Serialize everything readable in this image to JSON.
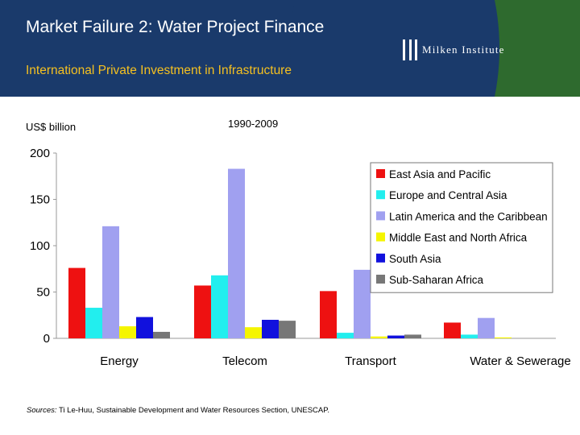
{
  "header": {
    "title": "Market Failure 2: Water Project Finance",
    "subtitle": "International Private Investment in Infrastructure",
    "logo_text": "Milken Institute"
  },
  "units_label": "US$ billion",
  "period_label": "1990-2009",
  "source": {
    "prefix": "Sources:",
    "text": "Ti Le-Huu, Sustainable Development and Water Resources Section, UNESCAP."
  },
  "colors": {
    "header_blue": "#1a3a6b",
    "header_green": "#2e6a2e",
    "subtitle_gold": "#f5c020"
  },
  "chart_data": {
    "type": "bar",
    "title": "",
    "xlabel": "",
    "ylabel": "US$ billion",
    "ylim": [
      0,
      200
    ],
    "yticks": [
      0,
      50,
      100,
      150,
      200
    ],
    "categories": [
      "Energy",
      "Telecom",
      "Transport",
      "Water & Sewerage"
    ],
    "legend_position": "right",
    "series": [
      {
        "name": "East Asia and Pacific",
        "color": "#ee1111",
        "values": [
          76,
          57,
          51,
          17
        ]
      },
      {
        "name": "Europe and Central Asia",
        "color": "#22eeee",
        "values": [
          33,
          68,
          6,
          4
        ]
      },
      {
        "name": "Latin America and the Caribbean",
        "color": "#a0a0f0",
        "values": [
          121,
          183,
          74,
          22
        ]
      },
      {
        "name": "Middle East and North Africa",
        "color": "#f5f500",
        "values": [
          13,
          12,
          2,
          1
        ]
      },
      {
        "name": "South Asia",
        "color": "#1111dd",
        "values": [
          23,
          20,
          3,
          0
        ]
      },
      {
        "name": "Sub-Saharan Africa",
        "color": "#777777",
        "values": [
          7,
          19,
          4,
          0
        ]
      }
    ]
  }
}
